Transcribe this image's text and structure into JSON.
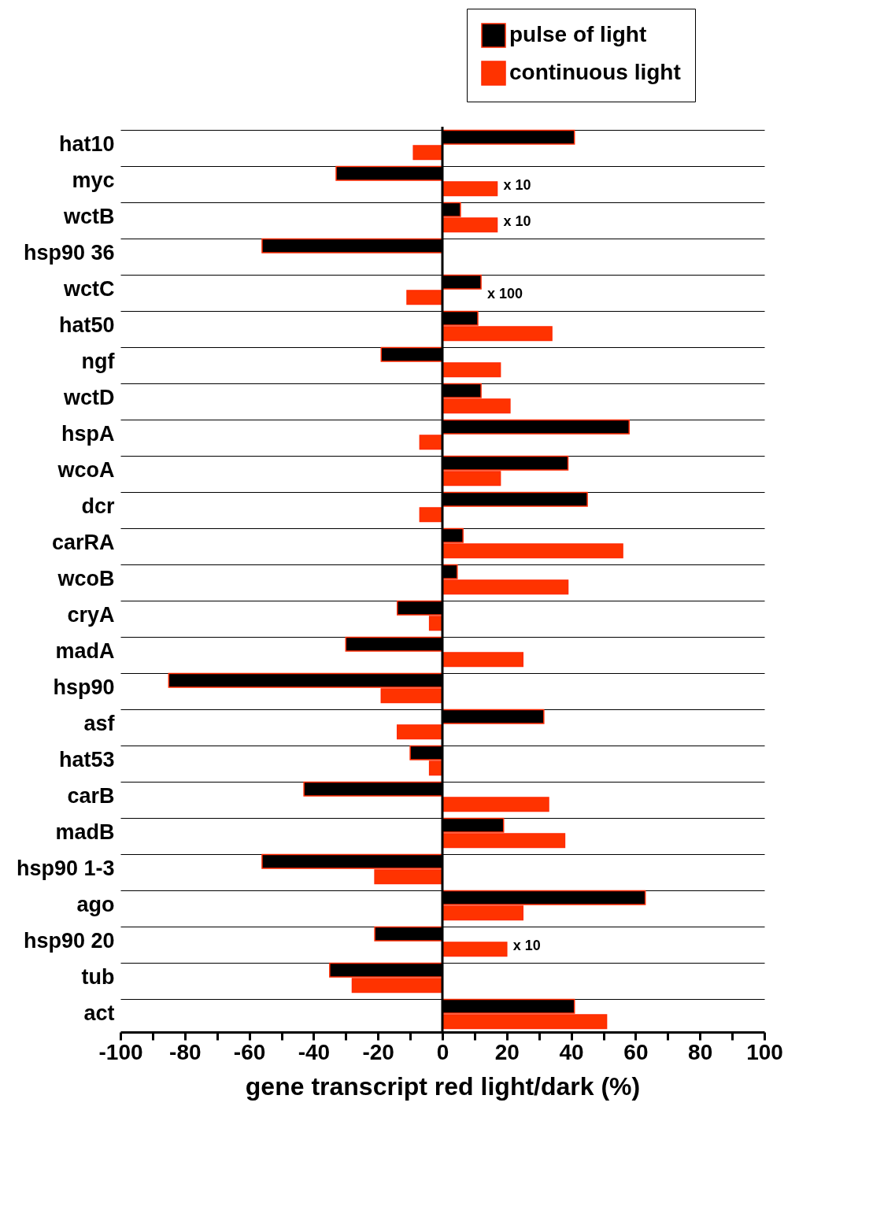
{
  "chart_data": {
    "type": "bar",
    "orientation": "horizontal",
    "categories": [
      "hat10",
      "myc",
      "wctB",
      "hsp90 36",
      "wctC",
      "hat50",
      "ngf",
      "wctD",
      "hspA",
      "wcoA",
      "dcr",
      "carRA",
      "wcoB",
      "cryA",
      "madA",
      "hsp90",
      "asf",
      "hat53",
      "carB",
      "madB",
      "hsp90 1-3",
      "ago",
      "hsp90 20",
      "tub",
      "act"
    ],
    "series": [
      {
        "name": "pulse of light",
        "color": "#000000",
        "values": [
          41,
          -33,
          5.6,
          -56,
          12,
          11,
          -19,
          12,
          58,
          39,
          45,
          6.4,
          4.6,
          -14,
          -30,
          -85,
          31.5,
          -10,
          -43,
          19,
          -56,
          63,
          -21,
          -35,
          41
        ]
      },
      {
        "name": "continuous light",
        "color": "#ff3300",
        "values": [
          -9,
          17,
          17,
          null,
          -11,
          34,
          18,
          21,
          -7,
          18,
          -7,
          56,
          39,
          -4,
          25,
          -19,
          -14,
          -4,
          33,
          38,
          -21,
          25,
          20,
          -28,
          51
        ]
      }
    ],
    "xlim": [
      -100,
      100
    ],
    "xticks": [
      -100,
      {
        "value": -90,
        "label": null
      },
      -80,
      {
        "value": -70,
        "label": null
      },
      -60,
      {
        "value": -50,
        "label": null
      },
      -40,
      {
        "value": -30,
        "label": null
      },
      -20,
      {
        "value": -10,
        "label": null
      },
      0,
      {
        "value": 10,
        "label": null
      },
      20,
      {
        "value": 30,
        "label": null
      },
      40,
      {
        "value": 50,
        "label": null
      },
      60,
      {
        "value": 70,
        "label": null
      },
      80,
      {
        "value": 90,
        "label": null
      },
      100
    ],
    "xlabel": "gene transcript red light/dark (%)",
    "grid": "y",
    "legend": "top right",
    "ref_lines": [
      {
        "axis": "x",
        "value": 0,
        "label": null,
        "color": "#000000"
      }
    ],
    "annotations": [
      {
        "text": "x 10",
        "x": 17,
        "y": "myc"
      },
      {
        "text": "x 10",
        "x": 17,
        "y": "wctB"
      },
      {
        "text": "x 100",
        "x": 12,
        "y": "wctC"
      },
      {
        "text": "x 10",
        "x": 20,
        "y": "hsp90 20"
      }
    ]
  }
}
